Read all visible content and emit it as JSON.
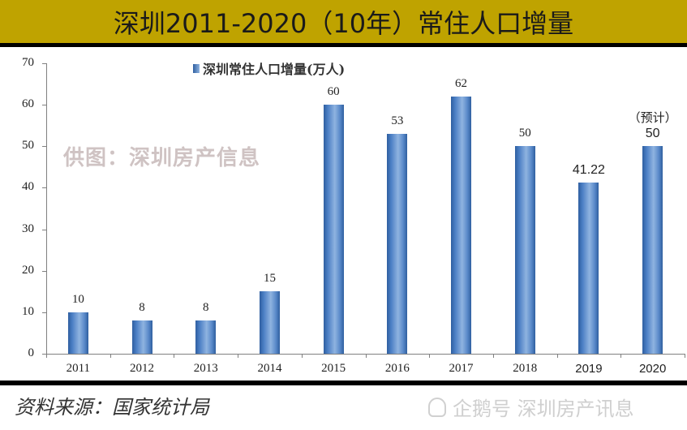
{
  "header": {
    "title": "深圳2011-2020（10年）常住人口增量"
  },
  "legend": {
    "label": "深圳常住人口增量(万人)",
    "icon": "legend-square-icon"
  },
  "watermark": "供图：深圳房产信息",
  "footer": {
    "source": "资料来源：国家统计局",
    "brand": "企鹅号 深圳房产讯息",
    "brand_icon": "penguin-icon"
  },
  "colors": {
    "title_bar": "#bfa300",
    "bar": "#4a7ec4",
    "rule": "#000000"
  },
  "chart_data": {
    "type": "bar",
    "title": "深圳2011-2020（10年）常住人口增量",
    "xlabel": "",
    "ylabel": "",
    "categories": [
      "2011",
      "2012",
      "2013",
      "2014",
      "2015",
      "2016",
      "2017",
      "2018",
      "2019",
      "2020"
    ],
    "series": [
      {
        "name": "深圳常住人口增量(万人)",
        "values": [
          10,
          8,
          8,
          15,
          60,
          53,
          62,
          50,
          41.22,
          50
        ]
      }
    ],
    "value_labels": [
      "10",
      "8",
      "8",
      "15",
      "60",
      "53",
      "62",
      "50",
      "41.22",
      "50"
    ],
    "annotations": [
      {
        "category": "2020",
        "text": "（预计）"
      }
    ],
    "yticks": [
      "0",
      "10",
      "20",
      "30",
      "40",
      "50",
      "60",
      "70"
    ],
    "ylim": [
      0,
      70
    ],
    "grid": false,
    "legend_position": "top"
  }
}
